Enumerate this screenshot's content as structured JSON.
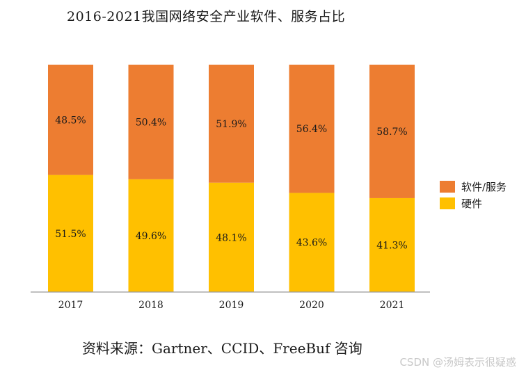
{
  "chart_data": {
    "type": "bar",
    "stacked": true,
    "title": "2016-2021我国网络安全产业软件、服务占比",
    "categories": [
      "2017",
      "2018",
      "2019",
      "2020",
      "2021"
    ],
    "series": [
      {
        "name": "硬件",
        "color": "#FFC000",
        "values": [
          51.5,
          49.6,
          48.1,
          43.6,
          41.3
        ]
      },
      {
        "name": "软件/服务",
        "color": "#ED7D31",
        "values": [
          48.5,
          50.4,
          51.9,
          56.4,
          58.7
        ]
      }
    ],
    "value_suffix": "%",
    "ylim": [
      0,
      100
    ],
    "xlabel": "",
    "ylabel": "",
    "grid": false,
    "legend_position": "right"
  },
  "legend": {
    "items": [
      {
        "label": "软件/服务",
        "color": "#ED7D31"
      },
      {
        "label": "硬件",
        "color": "#FFC000"
      }
    ]
  },
  "source_note": "资料来源：Gartner、CCID、FreeBuf 咨询",
  "watermark": "CSDN @汤姆表示很疑惑"
}
